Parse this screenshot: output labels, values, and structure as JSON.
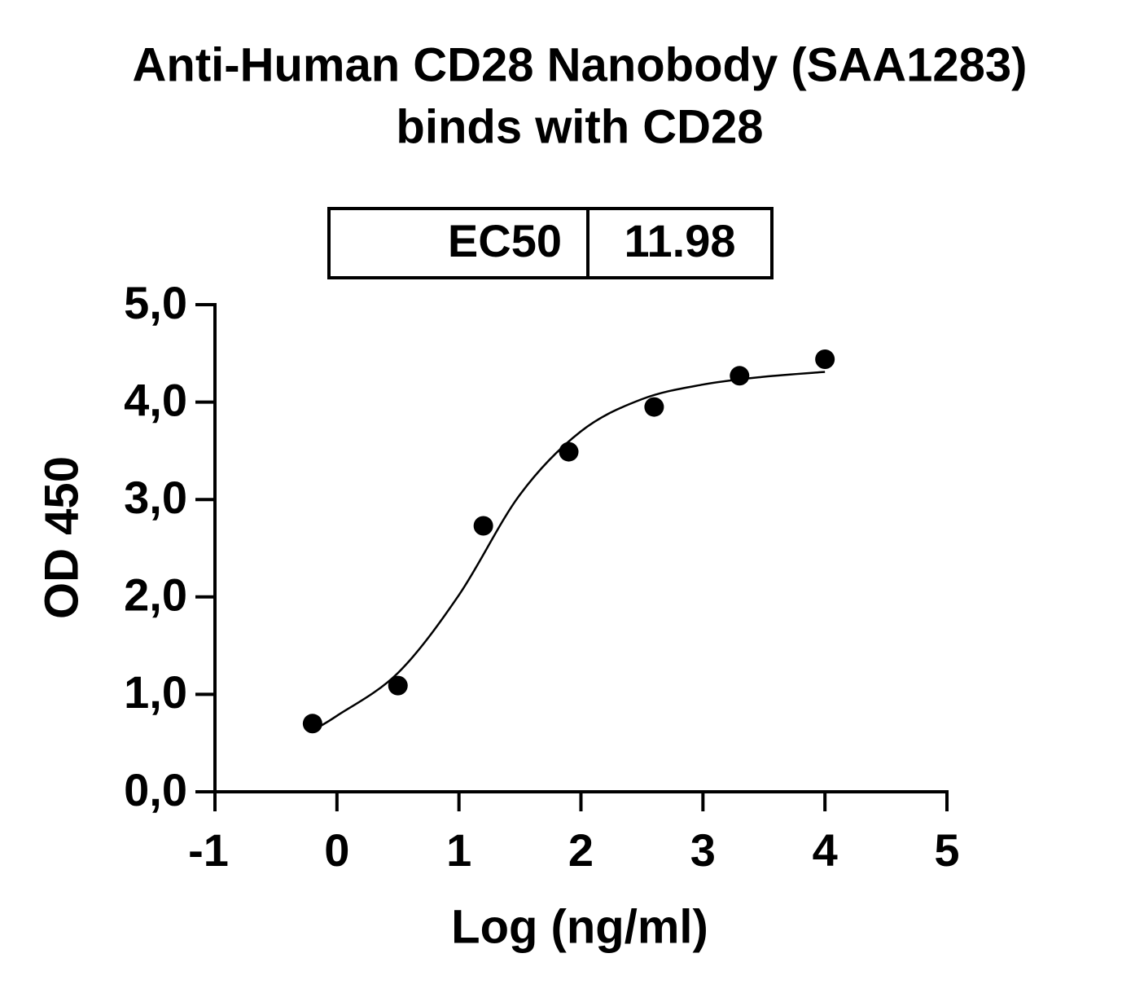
{
  "chart_data": {
    "type": "scatter",
    "title": [
      "Anti-Human CD28 Nanobody (SAA1283)",
      "binds with CD28"
    ],
    "annotation": {
      "label": "EC50",
      "value": 11.98
    },
    "x_label": "Log (ng/ml)",
    "y_label": "OD 450",
    "series": [
      {
        "kind": "points",
        "color": "#000000",
        "x": [
          -0.2,
          0.5,
          1.2,
          1.9,
          2.6,
          3.3,
          4.0
        ],
        "values": [
          0.7,
          1.09,
          2.73,
          3.49,
          3.95,
          4.27,
          4.44
        ]
      },
      {
        "kind": "fit",
        "color": "#000000",
        "x": [
          -0.2,
          0,
          0.5,
          1,
          1.5,
          2,
          2.5,
          3,
          3.5,
          4
        ],
        "values": [
          0.63,
          0.78,
          1.22,
          2.02,
          3.05,
          3.7,
          4.03,
          4.18,
          4.26,
          4.31
        ]
      }
    ],
    "xlim": [
      -1,
      5
    ],
    "xticks": [
      -1,
      0,
      1,
      2,
      3,
      4,
      5
    ],
    "ylim": [
      0,
      5
    ],
    "yticks": [
      {
        "value": 0,
        "label": "0,0"
      },
      {
        "value": 1,
        "label": "1,0"
      },
      {
        "value": 2,
        "label": "2,0"
      },
      {
        "value": 3,
        "label": "3,0"
      },
      {
        "value": 4,
        "label": "4,0"
      },
      {
        "value": 5,
        "label": "5,0"
      }
    ]
  }
}
